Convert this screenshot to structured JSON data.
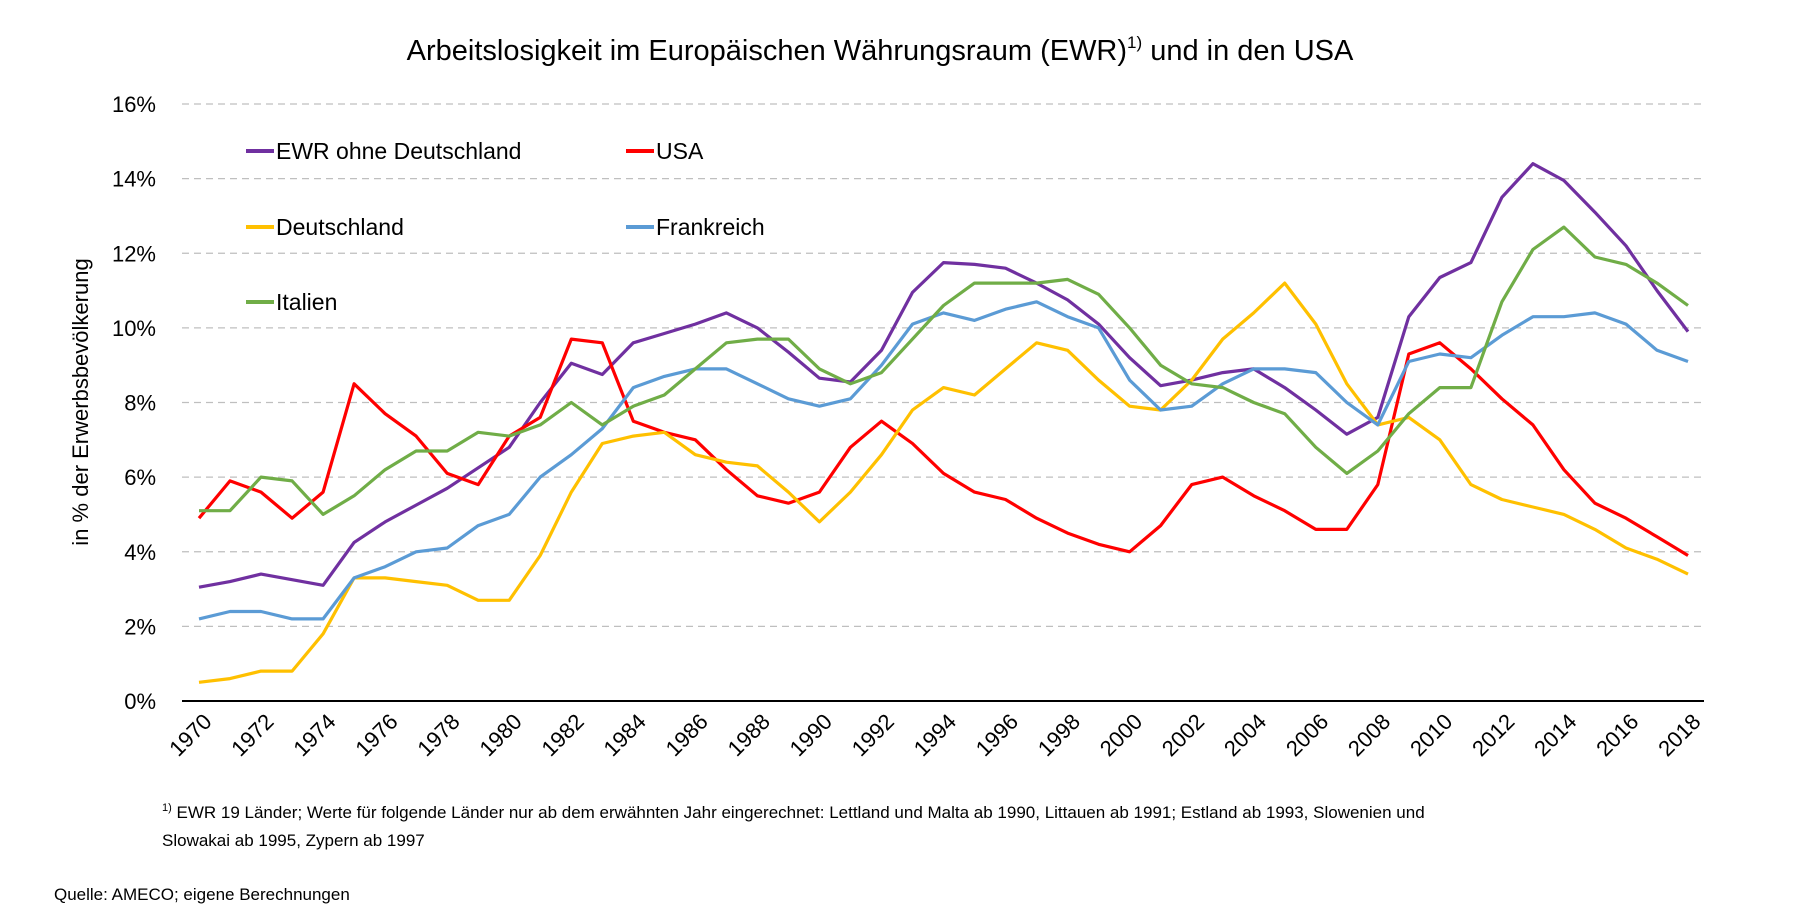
{
  "chart_data": {
    "type": "line",
    "title": "Arbeitslosigkeit im Europäischen Währungsraum (EWR)",
    "title_sup": "1)",
    "title_suffix": " und in den USA",
    "ylabel": "in % der Erwerbsbevölkerung",
    "xlabel": "",
    "ylim": [
      0,
      16
    ],
    "yticks": [
      0,
      2,
      4,
      6,
      8,
      10,
      12,
      14,
      16
    ],
    "ytick_labels": [
      "0%",
      "2%",
      "4%",
      "6%",
      "8%",
      "10%",
      "12%",
      "14%",
      "16%"
    ],
    "grid": "horizontal dashed",
    "legend_position": "top-left, inside",
    "x": [
      1970,
      1971,
      1972,
      1973,
      1974,
      1975,
      1976,
      1977,
      1978,
      1979,
      1980,
      1981,
      1982,
      1983,
      1984,
      1985,
      1986,
      1987,
      1988,
      1989,
      1990,
      1991,
      1992,
      1993,
      1994,
      1995,
      1996,
      1997,
      1998,
      1999,
      2000,
      2001,
      2002,
      2003,
      2004,
      2005,
      2006,
      2007,
      2008,
      2009,
      2010,
      2011,
      2012,
      2013,
      2014,
      2015,
      2016,
      2017,
      2018
    ],
    "xtick_labels": [
      "1970",
      "1972",
      "1974",
      "1976",
      "1978",
      "1980",
      "1982",
      "1984",
      "1986",
      "1988",
      "1990",
      "1992",
      "1994",
      "1996",
      "1998",
      "2000",
      "2002",
      "2004",
      "2006",
      "2008",
      "2010",
      "2012",
      "2014",
      "2016",
      "2018"
    ],
    "series": [
      {
        "name": "EWR ohne Deutschland",
        "color": "#7030A0",
        "values": [
          3.05,
          3.2,
          3.4,
          3.25,
          3.1,
          4.25,
          4.8,
          5.25,
          5.7,
          6.25,
          6.8,
          8.0,
          9.05,
          8.75,
          9.6,
          9.85,
          10.1,
          10.4,
          10.0,
          9.35,
          8.65,
          8.55,
          9.4,
          10.95,
          11.75,
          11.7,
          11.6,
          11.2,
          10.75,
          10.1,
          9.2,
          8.45,
          8.6,
          8.8,
          8.9,
          8.4,
          7.8,
          7.15,
          7.6,
          10.3,
          11.35,
          11.75,
          13.5,
          14.4,
          13.95,
          13.1,
          12.2,
          11.0,
          9.9
        ]
      },
      {
        "name": "USA",
        "color": "#FF0000",
        "values": [
          4.9,
          5.9,
          5.6,
          4.9,
          5.6,
          8.5,
          7.7,
          7.1,
          6.1,
          5.8,
          7.1,
          7.6,
          9.7,
          9.6,
          7.5,
          7.2,
          7.0,
          6.2,
          5.5,
          5.3,
          5.6,
          6.8,
          7.5,
          6.9,
          6.1,
          5.6,
          5.4,
          4.9,
          4.5,
          4.2,
          4.0,
          4.7,
          5.8,
          6.0,
          5.5,
          5.1,
          4.6,
          4.6,
          5.8,
          9.3,
          9.6,
          8.9,
          8.1,
          7.4,
          6.2,
          5.3,
          4.9,
          4.4,
          3.9
        ]
      },
      {
        "name": "Deutschland",
        "color": "#FFC000",
        "values": [
          0.5,
          0.6,
          0.8,
          0.8,
          1.8,
          3.3,
          3.3,
          3.2,
          3.1,
          2.7,
          2.7,
          3.9,
          5.6,
          6.9,
          7.1,
          7.2,
          6.6,
          6.4,
          6.3,
          5.6,
          4.8,
          5.6,
          6.6,
          7.8,
          8.4,
          8.2,
          8.9,
          9.6,
          9.4,
          8.6,
          7.9,
          7.8,
          8.6,
          9.7,
          10.4,
          11.2,
          10.1,
          8.5,
          7.4,
          7.6,
          7.0,
          5.8,
          5.4,
          5.2,
          5.0,
          4.6,
          4.1,
          3.8,
          3.4
        ]
      },
      {
        "name": "Frankreich",
        "color": "#5B9BD5",
        "values": [
          2.2,
          2.4,
          2.4,
          2.2,
          2.2,
          3.3,
          3.6,
          4.0,
          4.1,
          4.7,
          5.0,
          6.0,
          6.6,
          7.3,
          8.4,
          8.7,
          8.9,
          8.9,
          8.5,
          8.1,
          7.9,
          8.1,
          9.0,
          10.1,
          10.4,
          10.2,
          10.5,
          10.7,
          10.3,
          10.0,
          8.6,
          7.8,
          7.9,
          8.5,
          8.9,
          8.9,
          8.8,
          8.0,
          7.4,
          9.1,
          9.3,
          9.2,
          9.8,
          10.3,
          10.3,
          10.4,
          10.1,
          9.4,
          9.1
        ]
      },
      {
        "name": "Italien",
        "color": "#70AD47",
        "values": [
          5.1,
          5.1,
          6.0,
          5.9,
          5.0,
          5.5,
          6.2,
          6.7,
          6.7,
          7.2,
          7.1,
          7.4,
          8.0,
          7.4,
          7.9,
          8.2,
          8.9,
          9.6,
          9.7,
          9.7,
          8.9,
          8.5,
          8.8,
          9.7,
          10.6,
          11.2,
          11.2,
          11.2,
          11.3,
          10.9,
          10.0,
          9.0,
          8.5,
          8.4,
          8.0,
          7.7,
          6.8,
          6.1,
          6.7,
          7.7,
          8.4,
          8.4,
          10.7,
          12.1,
          12.7,
          11.9,
          11.7,
          11.2,
          10.6
        ]
      }
    ]
  },
  "footnote": {
    "marker": "1)",
    "line1": " EWR 19 Länder; Werte für folgende Länder nur ab dem erwähnten Jahr eingerechnet:  Lettland und Malta ab 1990, Littauen ab 1991; Estland ab 1993, Slowenien und",
    "line2": "Slowakai ab 1995, Zypern ab 1997"
  },
  "source": "Quelle: AMECO; eigene Berechnungen"
}
